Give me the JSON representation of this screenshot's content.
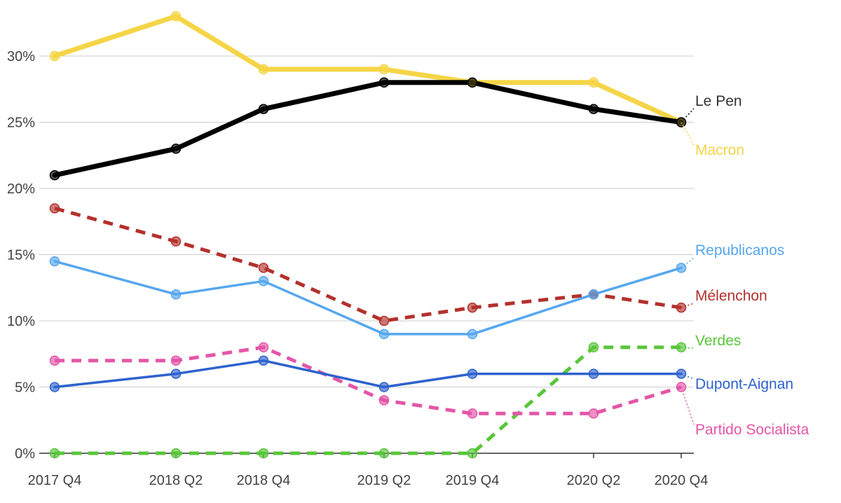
{
  "chart_data": {
    "type": "line",
    "categories": [
      "2017 Q4",
      "2018 Q2",
      "2018 Q4",
      "2019 Q2",
      "2019 Q4",
      "2020 Q2",
      "2020 Q4"
    ],
    "ylim": [
      0,
      33
    ],
    "yticks": [
      0,
      5,
      10,
      15,
      20,
      25,
      30
    ],
    "ytick_labels": [
      "0%",
      "5%",
      "10%",
      "15%",
      "20%",
      "25%",
      "30%"
    ],
    "grid": true,
    "series": [
      {
        "name": "Macron",
        "color": "#f5d547",
        "style": "solid",
        "values": [
          30,
          33,
          29,
          29,
          28,
          28,
          25
        ]
      },
      {
        "name": "Le Pen",
        "color": "#000000",
        "style": "solid",
        "values": [
          21,
          23,
          26,
          28,
          28,
          26,
          25
        ]
      },
      {
        "name": "Mélenchon",
        "color": "#b3312c",
        "style": "dashed",
        "values": [
          18.5,
          16,
          14,
          10,
          11,
          12,
          11
        ]
      },
      {
        "name": "Republicanos",
        "color": "#56a7ee",
        "style": "solid",
        "values": [
          14.5,
          12,
          13,
          9,
          9,
          12,
          14
        ]
      },
      {
        "name": "Partido Socialista",
        "color": "#e455a8",
        "style": "dashed",
        "values": [
          7,
          7,
          8,
          4,
          3,
          3,
          5
        ]
      },
      {
        "name": "Dupont-Aignan",
        "color": "#2e62cd",
        "style": "solid",
        "values": [
          5,
          6,
          7,
          5,
          6,
          6,
          6
        ]
      },
      {
        "name": "Verdes",
        "color": "#58c63a",
        "style": "dashed",
        "values": [
          0,
          0,
          0,
          0,
          0,
          8,
          8
        ]
      }
    ]
  }
}
